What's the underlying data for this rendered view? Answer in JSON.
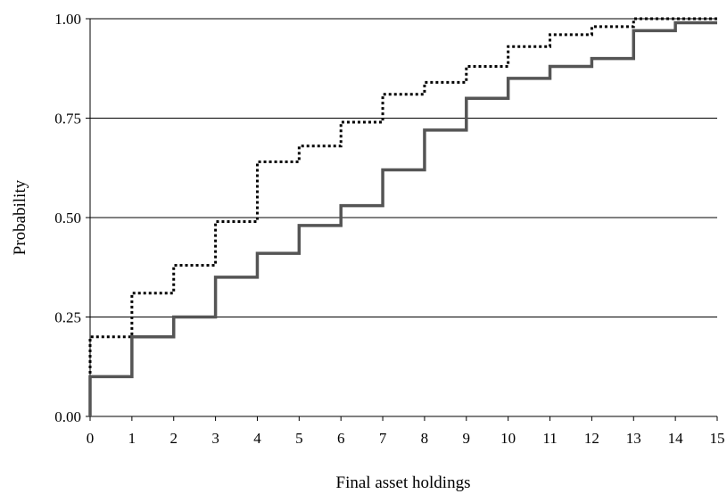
{
  "chart_data": {
    "type": "line",
    "step": true,
    "title": "",
    "xlabel": "Final asset holdings",
    "ylabel": "Probability",
    "xlim": [
      0,
      15
    ],
    "ylim": [
      0,
      1
    ],
    "x_ticks": [
      "0",
      "1",
      "2",
      "3",
      "4",
      "5",
      "6",
      "7",
      "8",
      "9",
      "10",
      "11",
      "12",
      "13",
      "14",
      "15"
    ],
    "y_ticks": [
      "0.00",
      "0.25",
      "0.50",
      "0.75",
      "1.00"
    ],
    "y_tick_values": [
      0,
      0.25,
      0.5,
      0.75,
      1.0
    ],
    "grid": "horizontal",
    "series": [
      {
        "style": "dotted",
        "color": "#000000",
        "x": [
          0,
          1,
          2,
          3,
          4,
          5,
          6,
          7,
          8,
          9,
          10,
          11,
          12,
          13,
          14,
          15
        ],
        "values": [
          0.2,
          0.31,
          0.38,
          0.49,
          0.64,
          0.68,
          0.74,
          0.81,
          0.84,
          0.88,
          0.93,
          0.96,
          0.98,
          1.0,
          1.0,
          1.0
        ]
      },
      {
        "style": "solid",
        "color": "#555555",
        "x": [
          0,
          1,
          2,
          3,
          4,
          5,
          6,
          7,
          8,
          9,
          10,
          11,
          12,
          13,
          14,
          15
        ],
        "values": [
          0.1,
          0.2,
          0.25,
          0.35,
          0.41,
          0.48,
          0.53,
          0.62,
          0.72,
          0.8,
          0.85,
          0.88,
          0.9,
          0.97,
          0.99,
          0.99
        ]
      }
    ]
  }
}
